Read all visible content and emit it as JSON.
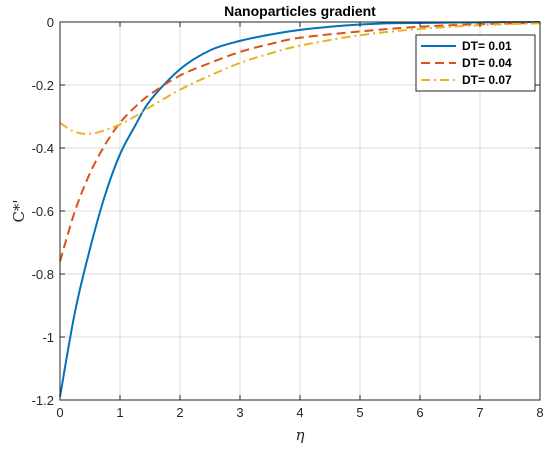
{
  "chart_data": {
    "type": "line",
    "title": "Nanoparticles gradient",
    "xlabel": "η",
    "ylabel": "C*'",
    "xlim": [
      0,
      8
    ],
    "ylim": [
      -1.2,
      0
    ],
    "xticks": [
      "0",
      "1",
      "2",
      "3",
      "4",
      "5",
      "6",
      "7",
      "8"
    ],
    "yticks": [
      "0",
      "-0.2",
      "-0.4",
      "-0.6",
      "-0.8",
      "-1",
      "-1.2"
    ],
    "grid": true,
    "legend_position": "top-right",
    "series": [
      {
        "name": "DT= 0.01",
        "color": "#0072BD",
        "style": "solid",
        "x": [
          0,
          0.25,
          0.5,
          0.75,
          1,
          1.25,
          1.5,
          2,
          2.5,
          3,
          3.5,
          4,
          4.5,
          5,
          5.5,
          6,
          7,
          8
        ],
        "y": [
          -1.19,
          -0.92,
          -0.72,
          -0.55,
          -0.42,
          -0.33,
          -0.25,
          -0.15,
          -0.09,
          -0.06,
          -0.04,
          -0.025,
          -0.015,
          -0.008,
          -0.004,
          -0.003,
          -0.001,
          0
        ]
      },
      {
        "name": "DT= 0.04",
        "color": "#D95319",
        "style": "dashed",
        "x": [
          0,
          0.25,
          0.5,
          0.75,
          1,
          1.25,
          1.5,
          2,
          2.5,
          3,
          3.5,
          4,
          5,
          6,
          7,
          8
        ],
        "y": [
          -0.76,
          -0.6,
          -0.48,
          -0.39,
          -0.32,
          -0.27,
          -0.23,
          -0.17,
          -0.13,
          -0.095,
          -0.07,
          -0.05,
          -0.03,
          -0.015,
          -0.007,
          -0.003
        ]
      },
      {
        "name": "DT= 0.07",
        "color": "#EDB120",
        "style": "dash-dot",
        "x": [
          0,
          0.2,
          0.4,
          0.6,
          0.8,
          1,
          1.25,
          1.5,
          2,
          2.5,
          3,
          3.5,
          4,
          5,
          6,
          7,
          8
        ],
        "y": [
          -0.32,
          -0.345,
          -0.355,
          -0.352,
          -0.34,
          -0.325,
          -0.3,
          -0.27,
          -0.215,
          -0.17,
          -0.13,
          -0.1,
          -0.075,
          -0.042,
          -0.022,
          -0.01,
          -0.004
        ]
      }
    ]
  }
}
